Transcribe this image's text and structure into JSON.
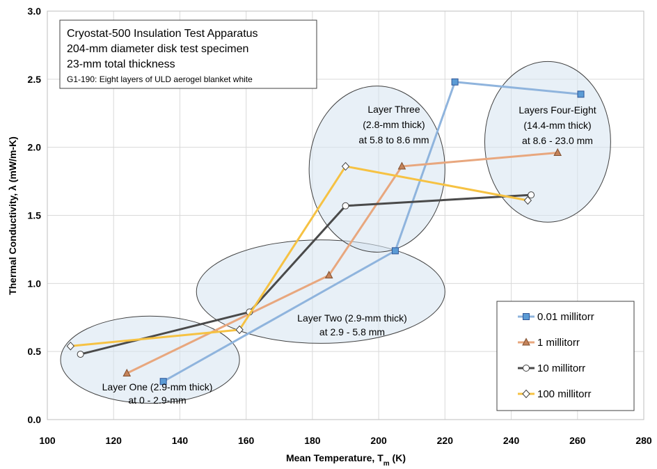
{
  "chart_data": {
    "type": "line",
    "xlabel": "Mean Temperature, T",
    "xlabel_sub": "m",
    "xlabel_unit": " (K)",
    "ylabel": "Thermal Conductivity, λ (mW/m-K)",
    "xlim": [
      100,
      280
    ],
    "ylim": [
      0,
      3.0
    ],
    "x_ticks": [
      "100",
      "120",
      "140",
      "160",
      "180",
      "200",
      "220",
      "240",
      "260",
      "280"
    ],
    "y_ticks": [
      "0.0",
      "0.5",
      "1.0",
      "1.5",
      "2.0",
      "2.5",
      "3.0"
    ],
    "grid": true,
    "legend_position": "bottom-right",
    "series": [
      {
        "name": "0.01 millitorr",
        "color": "#8fb4dd",
        "marker_color": "#5b9bd5",
        "marker": "square",
        "points": [
          [
            135,
            0.28
          ],
          [
            205,
            1.24
          ],
          [
            223,
            2.48
          ],
          [
            261,
            2.39
          ]
        ]
      },
      {
        "name": "1 millitorr",
        "color": "#e8a77e",
        "marker_color": "#c5835a",
        "marker": "triangle",
        "points": [
          [
            124,
            0.34
          ],
          [
            185,
            1.06
          ],
          [
            207,
            1.86
          ],
          [
            254,
            1.96
          ]
        ]
      },
      {
        "name": "10 millitorr",
        "color": "#4a4a4a",
        "marker_color": "#ffffff",
        "marker": "circle",
        "points": [
          [
            110,
            0.48
          ],
          [
            161,
            0.79
          ],
          [
            190,
            1.57
          ],
          [
            246,
            1.65
          ]
        ]
      },
      {
        "name": "100 millitorr",
        "color": "#f6c243",
        "marker_color": "#ffffff",
        "marker": "diamond",
        "points": [
          [
            107,
            0.54
          ],
          [
            158,
            0.66
          ],
          [
            190,
            1.86
          ],
          [
            245,
            1.61
          ]
        ]
      }
    ],
    "regions": [
      {
        "label_lines": [
          "Layer One (2.9-mm thick)",
          "at 0 - 2.9-mm"
        ],
        "cx": 131,
        "cy": 0.44,
        "rx": 27,
        "ry": 0.32
      },
      {
        "label_lines": [
          "Layer Two (2.9-mm thick)",
          "at 2.9 - 5.8 mm"
        ],
        "cx": 182.5,
        "cy": 0.94,
        "rx": 37.5,
        "ry": 0.38
      },
      {
        "label_lines": [
          "Layer Three",
          "(2.8-mm thick)",
          "at 5.8 to 8.6 mm"
        ],
        "cx": 199.5,
        "cy": 1.84,
        "rx": 20.5,
        "ry": 0.61
      },
      {
        "label_lines": [
          "Layers Four-Eight",
          "(14.4-mm thick)",
          "at 8.6 - 23.0 mm"
        ],
        "cx": 251,
        "cy": 2.04,
        "rx": 19,
        "ry": 0.59
      }
    ],
    "info_box": {
      "lines": [
        "Cryostat-500 Insulation Test Apparatus",
        "204-mm diameter disk test specimen",
        "23-mm total thickness"
      ],
      "note": "G1-190: Eight layers of ULD aerogel blanket white"
    }
  }
}
